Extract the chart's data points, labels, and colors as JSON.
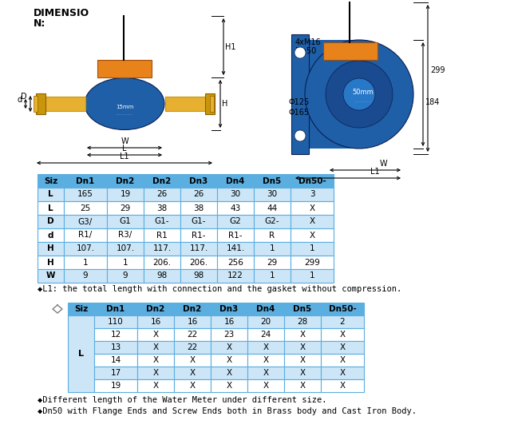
{
  "title_line1": "DIMENSIO",
  "title_line2": "N:",
  "table1_headers": [
    "Siz",
    "Dn1",
    "Dn2",
    "Dn2",
    "Dn3",
    "Dn4",
    "Dn5",
    "Dn50-"
  ],
  "table1_rows": [
    [
      "L",
      "165",
      "19",
      "26",
      "26",
      "30",
      "30",
      "3"
    ],
    [
      "L",
      "25",
      "29",
      "38",
      "38",
      "43",
      "44",
      "X"
    ],
    [
      "D",
      "G3/",
      "G1",
      "G1-",
      "G1-",
      "G2",
      "G2-",
      "X"
    ],
    [
      "d",
      "R1/",
      "R3/",
      "R1",
      "R1-",
      "R1-",
      "R",
      "X"
    ],
    [
      "H",
      "107.",
      "107.",
      "117.",
      "117.",
      "141.",
      "1",
      "1"
    ],
    [
      "H",
      "1",
      "1",
      "206.",
      "206.",
      "256",
      "29",
      "299"
    ],
    [
      "W",
      "9",
      "9",
      "98",
      "98",
      "122",
      "1",
      "1"
    ]
  ],
  "table2_headers": [
    "Siz",
    "Dn1",
    "Dn2",
    "Dn2",
    "Dn3",
    "Dn4",
    "Dn5",
    "Dn50-"
  ],
  "table2_col1": "L",
  "table2_rows": [
    [
      "110",
      "16",
      "16",
      "16",
      "20",
      "28",
      "2"
    ],
    [
      "12",
      "X",
      "22",
      "23",
      "24",
      "X",
      "X"
    ],
    [
      "13",
      "X",
      "22",
      "X",
      "X",
      "X",
      "X"
    ],
    [
      "14",
      "X",
      "X",
      "X",
      "X",
      "X",
      "X"
    ],
    [
      "17",
      "X",
      "X",
      "X",
      "X",
      "X",
      "X"
    ],
    [
      "19",
      "X",
      "X",
      "X",
      "X",
      "X",
      "X"
    ]
  ],
  "note1": "◆L1: the total length with connection and the gasket without compression.",
  "note2": "◆Different length of the Water Meter under different size.",
  "note3": "◆Dn50 with Flange Ends and Screw Ends both in Brass body and Cast Iron Body.",
  "header_bg": "#5baee0",
  "row_bg_odd": "#cce6f7",
  "row_bg_even": "#ffffff",
  "border_color": "#5baee0",
  "body_orange": "#e8821a",
  "body_blue": "#1e5fa8",
  "body_blue2": "#2878c8",
  "pipe_yellow": "#c8960a",
  "pipe_yellow2": "#e8b030"
}
